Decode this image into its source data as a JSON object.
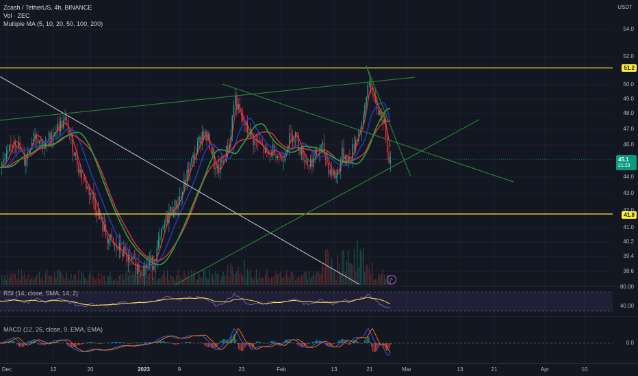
{
  "legend": {
    "title": "Zcash / TetherUS, 4h, BINANCE",
    "volume": "Vol · ZEC",
    "ma": "Multiple MA (5, 10, 20, 50, 100, 200)",
    "rsi": "RSI (14, close, SMA, 14, 2)",
    "macd": "MACD (12, 26, close, 9, EMA, EMA)"
  },
  "currency": "USDT",
  "price_axis": [
    "54.0",
    "52.0",
    "50.0",
    "49.0",
    "48.0",
    "47.0",
    "46.0",
    "44.0",
    "43.0",
    "42.0",
    "41.0",
    "40.2",
    "39.4",
    "38.6"
  ],
  "rsi_axis": [
    "80.00",
    "40.00"
  ],
  "macd_axis": [
    "0.0"
  ],
  "time_axis": [
    "Dec",
    "12",
    "20",
    "2023",
    "9",
    "23",
    "Feb",
    "13",
    "21",
    "Mar",
    "13",
    "21",
    "Apr",
    "10"
  ],
  "badges": {
    "resistance": "51.2",
    "support": "41.8",
    "price": "45.1",
    "countdown": "21:29"
  },
  "colors": {
    "background": "#131722",
    "resistance_line": "#ffeb3b",
    "trend_lines": "#2e7d32",
    "downtrend_line": "#b2b5be",
    "ma_fast": "#f23645",
    "ma_mid": "#1e3fbf",
    "ma_slow": "#22ab94",
    "up_candle": "#22ab94",
    "down_candle": "#f23645"
  },
  "chart_data": {
    "type": "line",
    "symbol": "ZEC/USDT",
    "interval": "4h",
    "exchange": "BINANCE",
    "x": [
      "Dec",
      "12",
      "20",
      "2023",
      "9",
      "23",
      "Feb",
      "13",
      "21"
    ],
    "series": [
      {
        "name": "close",
        "values": [
          45.0,
          47.3,
          43.0,
          38.8,
          42.5,
          47.2,
          46.8,
          44.5,
          45.1
        ]
      }
    ],
    "ylim": [
      38.6,
      54.0
    ],
    "horizontal_levels": [
      51.2,
      41.8
    ],
    "last_price": 45.1
  }
}
